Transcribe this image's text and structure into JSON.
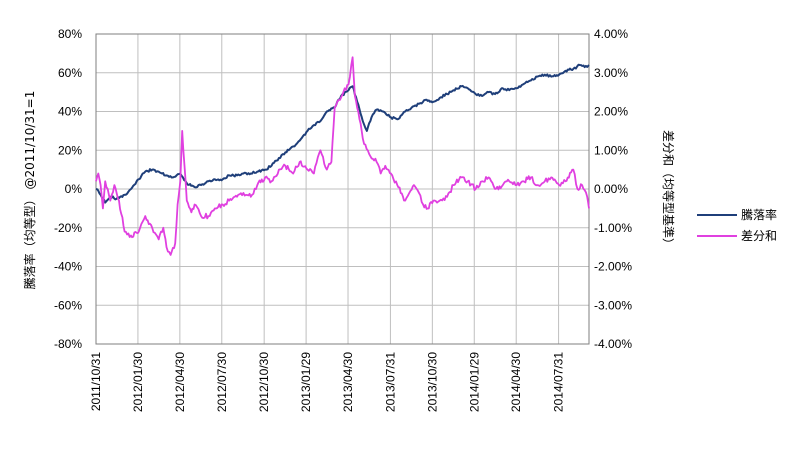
{
  "chart_data": {
    "type": "line",
    "y_left": {
      "label": "騰落率（均等型） @2011/10/31=1",
      "ylim": [
        -80,
        80
      ],
      "ticks": [
        "80%",
        "60%",
        "40%",
        "20%",
        "0%",
        "-20%",
        "-40%",
        "-60%",
        "-80%"
      ]
    },
    "y_right": {
      "label": "差分和（均等型基準）",
      "ylim": [
        -4.0,
        4.0
      ],
      "ticks": [
        "4.00%",
        "3.00%",
        "2.00%",
        "1.00%",
        "0.00%",
        "-1.00%",
        "-2.00%",
        "-3.00%",
        "-4.00%"
      ]
    },
    "x_axis": {
      "range": [
        "2011/10/31",
        "2014/10/05"
      ],
      "ticks": [
        "2011/10/31",
        "2012/01/30",
        "2012/04/30",
        "2012/07/30",
        "2012/10/30",
        "2013/01/29",
        "2013/04/30",
        "2013/07/31",
        "2013/10/30",
        "2014/01/29",
        "2014/04/30",
        "2014/07/31"
      ]
    },
    "grid": true,
    "legend_position": "right",
    "series": [
      {
        "name": "騰落率",
        "axis": "left",
        "color": "#1f3f7a",
        "points": [
          [
            "2011/10/31",
            0
          ],
          [
            "2011/11/10",
            -3
          ],
          [
            "2011/11/20",
            -7
          ],
          [
            "2011/12/01",
            -4
          ],
          [
            "2011/12/15",
            -5
          ],
          [
            "2012/01/01",
            -3
          ],
          [
            "2012/01/15",
            0
          ],
          [
            "2012/02/01",
            5
          ],
          [
            "2012/02/15",
            9
          ],
          [
            "2012/03/01",
            10
          ],
          [
            "2012/03/15",
            9
          ],
          [
            "2012/04/01",
            7
          ],
          [
            "2012/04/15",
            6
          ],
          [
            "2012/05/01",
            8
          ],
          [
            "2012/05/15",
            3
          ],
          [
            "2012/06/01",
            1
          ],
          [
            "2012/06/15",
            2
          ],
          [
            "2012/07/01",
            4
          ],
          [
            "2012/07/15",
            5
          ],
          [
            "2012/08/01",
            5
          ],
          [
            "2012/08/15",
            7
          ],
          [
            "2012/09/01",
            7
          ],
          [
            "2012/09/15",
            8
          ],
          [
            "2012/10/01",
            8
          ],
          [
            "2012/10/15",
            9
          ],
          [
            "2012/11/01",
            10
          ],
          [
            "2012/11/15",
            12
          ],
          [
            "2012/12/01",
            16
          ],
          [
            "2012/12/15",
            19
          ],
          [
            "2013/01/01",
            22
          ],
          [
            "2013/01/15",
            25
          ],
          [
            "2013/02/01",
            30
          ],
          [
            "2013/02/15",
            33
          ],
          [
            "2013/03/01",
            35
          ],
          [
            "2013/03/15",
            40
          ],
          [
            "2013/04/01",
            42
          ],
          [
            "2013/04/15",
            48
          ],
          [
            "2013/05/01",
            51
          ],
          [
            "2013/05/10",
            53
          ],
          [
            "2013/05/20",
            45
          ],
          [
            "2013/06/01",
            35
          ],
          [
            "2013/06/10",
            30
          ],
          [
            "2013/06/20",
            37
          ],
          [
            "2013/07/01",
            41
          ],
          [
            "2013/07/15",
            40
          ],
          [
            "2013/08/01",
            37
          ],
          [
            "2013/08/15",
            36
          ],
          [
            "2013/09/01",
            40
          ],
          [
            "2013/09/15",
            42
          ],
          [
            "2013/10/01",
            44
          ],
          [
            "2013/10/15",
            46
          ],
          [
            "2013/11/01",
            45
          ],
          [
            "2013/11/15",
            47
          ],
          [
            "2013/12/01",
            49
          ],
          [
            "2013/12/15",
            51
          ],
          [
            "2014/01/01",
            53
          ],
          [
            "2014/01/15",
            52
          ],
          [
            "2014/02/01",
            49
          ],
          [
            "2014/02/15",
            48
          ],
          [
            "2014/03/01",
            50
          ],
          [
            "2014/03/15",
            49
          ],
          [
            "2014/04/01",
            52
          ],
          [
            "2014/04/15",
            51
          ],
          [
            "2014/05/01",
            52
          ],
          [
            "2014/05/15",
            54
          ],
          [
            "2014/06/01",
            56
          ],
          [
            "2014/06/15",
            58
          ],
          [
            "2014/07/01",
            59
          ],
          [
            "2014/07/15",
            58
          ],
          [
            "2014/08/01",
            59
          ],
          [
            "2014/08/15",
            61
          ],
          [
            "2014/09/01",
            62
          ],
          [
            "2014/09/15",
            64
          ],
          [
            "2014/10/01",
            63
          ],
          [
            "2014/10/05",
            64
          ]
        ]
      },
      {
        "name": "差分和",
        "axis": "right",
        "color": "#e040e0",
        "points": [
          [
            "2011/10/31",
            0.2
          ],
          [
            "2011/11/05",
            0.4
          ],
          [
            "2011/11/10",
            0.1
          ],
          [
            "2011/11/15",
            -0.5
          ],
          [
            "2011/11/20",
            0.2
          ],
          [
            "2011/12/01",
            -0.3
          ],
          [
            "2011/12/10",
            0.1
          ],
          [
            "2011/12/20",
            -0.3
          ],
          [
            "2012/01/01",
            -1.1
          ],
          [
            "2012/01/15",
            -1.2
          ],
          [
            "2012/02/01",
            -1.1
          ],
          [
            "2012/02/15",
            -0.7
          ],
          [
            "2012/03/01",
            -1.0
          ],
          [
            "2012/03/15",
            -1.3
          ],
          [
            "2012/03/25",
            -1.0
          ],
          [
            "2012/04/01",
            -1.5
          ],
          [
            "2012/04/10",
            -1.7
          ],
          [
            "2012/04/20",
            -1.4
          ],
          [
            "2012/04/25",
            -0.4
          ],
          [
            "2012/05/01",
            0.2
          ],
          [
            "2012/05/05",
            1.5
          ],
          [
            "2012/05/10",
            0.6
          ],
          [
            "2012/05/15",
            -0.3
          ],
          [
            "2012/05/25",
            -0.6
          ],
          [
            "2012/06/01",
            -0.4
          ],
          [
            "2012/06/15",
            -0.7
          ],
          [
            "2012/07/01",
            -0.7
          ],
          [
            "2012/07/15",
            -0.5
          ],
          [
            "2012/08/01",
            -0.4
          ],
          [
            "2012/08/15",
            -0.3
          ],
          [
            "2012/09/01",
            -0.2
          ],
          [
            "2012/09/15",
            -0.1
          ],
          [
            "2012/10/01",
            -0.2
          ],
          [
            "2012/10/15",
            0.1
          ],
          [
            "2012/11/01",
            0.3
          ],
          [
            "2012/11/15",
            0.2
          ],
          [
            "2012/12/01",
            0.5
          ],
          [
            "2012/12/15",
            0.6
          ],
          [
            "2013/01/01",
            0.4
          ],
          [
            "2013/01/15",
            0.7
          ],
          [
            "2013/02/01",
            0.5
          ],
          [
            "2013/02/15",
            0.4
          ],
          [
            "2013/03/01",
            1.0
          ],
          [
            "2013/03/15",
            0.5
          ],
          [
            "2013/03/25",
            0.7
          ],
          [
            "2013/04/01",
            2.1
          ],
          [
            "2013/04/10",
            2.3
          ],
          [
            "2013/04/20",
            2.5
          ],
          [
            "2013/05/01",
            2.7
          ],
          [
            "2013/05/10",
            3.4
          ],
          [
            "2013/05/15",
            2.4
          ],
          [
            "2013/05/25",
            1.8
          ],
          [
            "2013/06/01",
            1.3
          ],
          [
            "2013/06/15",
            0.9
          ],
          [
            "2013/07/01",
            0.7
          ],
          [
            "2013/07/10",
            0.4
          ],
          [
            "2013/07/20",
            0.6
          ],
          [
            "2013/08/01",
            0.4
          ],
          [
            "2013/08/15",
            0.1
          ],
          [
            "2013/09/01",
            -0.3
          ],
          [
            "2013/09/10",
            -0.1
          ],
          [
            "2013/09/20",
            0.1
          ],
          [
            "2013/10/01",
            -0.1
          ],
          [
            "2013/10/10",
            -0.4
          ],
          [
            "2013/10/20",
            -0.5
          ],
          [
            "2013/11/01",
            -0.3
          ],
          [
            "2013/11/15",
            -0.3
          ],
          [
            "2013/12/01",
            -0.2
          ],
          [
            "2013/12/15",
            0.1
          ],
          [
            "2014/01/01",
            0.3
          ],
          [
            "2014/01/15",
            0.2
          ],
          [
            "2014/02/01",
            0.0
          ],
          [
            "2014/02/15",
            0.2
          ],
          [
            "2014/03/01",
            0.3
          ],
          [
            "2014/03/15",
            0.0
          ],
          [
            "2014/04/01",
            0.1
          ],
          [
            "2014/04/15",
            0.2
          ],
          [
            "2014/05/01",
            0.1
          ],
          [
            "2014/05/15",
            0.2
          ],
          [
            "2014/06/01",
            0.3
          ],
          [
            "2014/06/15",
            0.1
          ],
          [
            "2014/07/01",
            0.2
          ],
          [
            "2014/07/15",
            0.3
          ],
          [
            "2014/08/01",
            0.1
          ],
          [
            "2014/08/15",
            0.2
          ],
          [
            "2014/09/01",
            0.5
          ],
          [
            "2014/09/10",
            0.0
          ],
          [
            "2014/09/20",
            0.1
          ],
          [
            "2014/10/01",
            -0.2
          ],
          [
            "2014/10/05",
            -0.5
          ]
        ]
      }
    ]
  }
}
